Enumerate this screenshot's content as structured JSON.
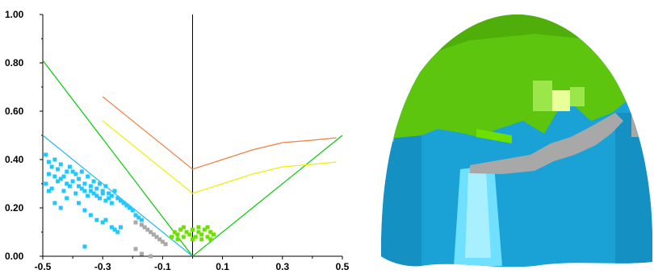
{
  "chart_data": {
    "type": "scatter",
    "title": "",
    "xlabel": "",
    "ylabel": "",
    "xlim": [
      -0.5,
      0.5
    ],
    "ylim": [
      0,
      1.0
    ],
    "x_ticks": [
      -0.5,
      -0.3,
      -0.1,
      0.1,
      0.3,
      0.5
    ],
    "x_tick_labels": [
      "-0.5",
      "-0.3",
      "-0.1",
      "0.1",
      "0.3",
      "0.5"
    ],
    "y_ticks": [
      0,
      0.2,
      0.4,
      0.6,
      0.8,
      1.0
    ],
    "y_tick_labels": [
      "0.00",
      "0.20",
      "0.40",
      "0.60",
      "0.80",
      "1.00"
    ],
    "grid": false,
    "legend": "none",
    "vertical_reference_x": 0.0,
    "series": [
      {
        "kind": "line",
        "color": "#00cc00",
        "points": [
          [
            -0.5,
            0.81
          ],
          [
            0.0,
            0.0
          ],
          [
            0.5,
            0.5
          ]
        ]
      },
      {
        "kind": "line",
        "color": "#22b8f0",
        "points": [
          [
            -0.5,
            0.5
          ],
          [
            0.0,
            0.0
          ]
        ]
      },
      {
        "kind": "line",
        "color": "#f08040",
        "points": [
          [
            -0.3,
            0.66
          ],
          [
            0.0,
            0.36
          ],
          [
            0.1,
            0.4
          ],
          [
            0.2,
            0.44
          ],
          [
            0.3,
            0.47
          ],
          [
            0.4,
            0.48
          ],
          [
            0.48,
            0.49
          ]
        ]
      },
      {
        "kind": "line",
        "color": "#f0f000",
        "points": [
          [
            -0.3,
            0.56
          ],
          [
            0.0,
            0.26
          ],
          [
            0.1,
            0.3
          ],
          [
            0.2,
            0.34
          ],
          [
            0.3,
            0.37
          ],
          [
            0.4,
            0.38
          ],
          [
            0.48,
            0.39
          ]
        ]
      },
      {
        "kind": "scatter",
        "color": "#1fc8ff",
        "points": [
          [
            -0.49,
            0.42
          ],
          [
            -0.48,
            0.39
          ],
          [
            -0.47,
            0.37
          ],
          [
            -0.46,
            0.4
          ],
          [
            -0.45,
            0.36
          ],
          [
            -0.44,
            0.38
          ],
          [
            -0.43,
            0.33
          ],
          [
            -0.42,
            0.35
          ],
          [
            -0.41,
            0.37
          ],
          [
            -0.4,
            0.31
          ],
          [
            -0.39,
            0.34
          ],
          [
            -0.38,
            0.32
          ],
          [
            -0.37,
            0.35
          ],
          [
            -0.36,
            0.3
          ],
          [
            -0.35,
            0.33
          ],
          [
            -0.34,
            0.29
          ],
          [
            -0.33,
            0.31
          ],
          [
            -0.32,
            0.28
          ],
          [
            -0.31,
            0.3
          ],
          [
            -0.3,
            0.27
          ],
          [
            -0.29,
            0.29
          ],
          [
            -0.28,
            0.26
          ],
          [
            -0.27,
            0.25
          ],
          [
            -0.26,
            0.27
          ],
          [
            -0.25,
            0.24
          ],
          [
            -0.24,
            0.23
          ],
          [
            -0.23,
            0.22
          ],
          [
            -0.22,
            0.21
          ],
          [
            -0.21,
            0.2
          ],
          [
            -0.2,
            0.19
          ],
          [
            -0.19,
            0.17
          ],
          [
            -0.18,
            0.16
          ],
          [
            -0.17,
            0.15
          ],
          [
            -0.49,
            0.3
          ],
          [
            -0.47,
            0.28
          ],
          [
            -0.45,
            0.31
          ],
          [
            -0.43,
            0.27
          ],
          [
            -0.41,
            0.29
          ],
          [
            -0.39,
            0.26
          ],
          [
            -0.37,
            0.28
          ],
          [
            -0.35,
            0.25
          ],
          [
            -0.33,
            0.26
          ],
          [
            -0.31,
            0.24
          ],
          [
            -0.29,
            0.23
          ],
          [
            -0.27,
            0.22
          ],
          [
            -0.48,
            0.34
          ],
          [
            -0.44,
            0.32
          ],
          [
            -0.4,
            0.35
          ],
          [
            -0.36,
            0.27
          ],
          [
            -0.32,
            0.25
          ],
          [
            -0.28,
            0.24
          ],
          [
            -0.36,
            0.19
          ],
          [
            -0.34,
            0.17
          ],
          [
            -0.32,
            0.15
          ],
          [
            -0.3,
            0.14
          ],
          [
            -0.29,
            0.15
          ],
          [
            -0.27,
            0.12
          ],
          [
            -0.26,
            0.11
          ],
          [
            -0.25,
            0.1
          ],
          [
            -0.24,
            0.12
          ],
          [
            -0.36,
            0.04
          ],
          [
            -0.46,
            0.22
          ],
          [
            -0.44,
            0.2
          ],
          [
            -0.42,
            0.24
          ],
          [
            -0.38,
            0.22
          ],
          [
            -0.48,
            0.27
          ],
          [
            -0.46,
            0.33
          ],
          [
            -0.42,
            0.3
          ],
          [
            -0.38,
            0.29
          ],
          [
            -0.34,
            0.27
          ],
          [
            -0.3,
            0.26
          ]
        ]
      },
      {
        "kind": "scatter",
        "color": "#a8a8a8",
        "points": [
          [
            -0.17,
            0.13
          ],
          [
            -0.16,
            0.12
          ],
          [
            -0.15,
            0.11
          ],
          [
            -0.14,
            0.1
          ],
          [
            -0.13,
            0.09
          ],
          [
            -0.12,
            0.08
          ],
          [
            -0.11,
            0.07
          ],
          [
            -0.1,
            0.06
          ],
          [
            -0.19,
            0.14
          ],
          [
            -0.09,
            0.05
          ],
          [
            -0.19,
            0.03
          ],
          [
            -0.17,
            0.01
          ],
          [
            -0.14,
            0.0
          ]
        ]
      },
      {
        "kind": "scatter",
        "color": "#6ee000",
        "points": [
          [
            -0.06,
            0.1
          ],
          [
            -0.05,
            0.09
          ],
          [
            -0.04,
            0.11
          ],
          [
            -0.03,
            0.08
          ],
          [
            -0.02,
            0.1
          ],
          [
            -0.01,
            0.09
          ],
          [
            0.0,
            0.11
          ],
          [
            0.01,
            0.08
          ],
          [
            0.02,
            0.1
          ],
          [
            0.03,
            0.09
          ],
          [
            0.04,
            0.11
          ],
          [
            0.05,
            0.08
          ],
          [
            0.06,
            0.1
          ],
          [
            0.07,
            0.09
          ],
          [
            -0.07,
            0.08
          ],
          [
            -0.05,
            0.07
          ],
          [
            0.0,
            0.07
          ],
          [
            0.03,
            0.07
          ],
          [
            0.06,
            0.07
          ],
          [
            -0.03,
            0.12
          ],
          [
            0.02,
            0.12
          ],
          [
            0.05,
            0.12
          ]
        ]
      }
    ]
  },
  "dome": {
    "colors": {
      "green": "#5ec50e",
      "blue": "#1aa2d6",
      "light_blue": "#6fe0ff",
      "gray": "#a8a8a8",
      "pale": "#e8ff9a"
    }
  }
}
